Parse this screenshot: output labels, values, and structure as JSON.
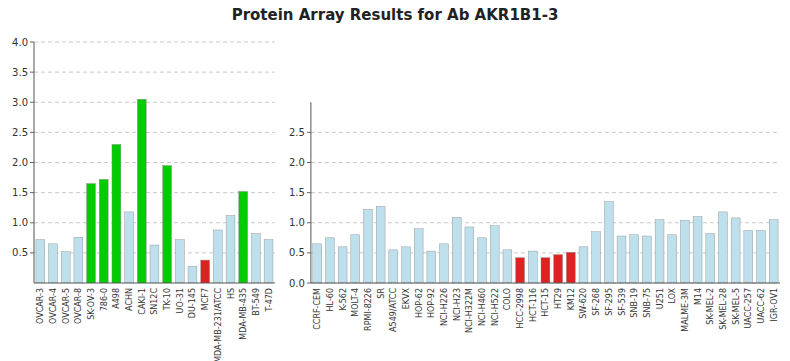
{
  "chart_data": [
    {
      "type": "bar",
      "title": "Protein Array Results for Ab AKR1B1-3",
      "categories": [
        "OVCAR-3",
        "OVCAR-4",
        "OVCAR-5",
        "OVCAR-8",
        "SK-OV-3",
        "786-0",
        "A498",
        "ACHN",
        "CAKI-1",
        "SN12C",
        "TK-10",
        "UO-31",
        "DU-145",
        "MCF7",
        "MDA-MB-231/ATCC",
        "HS",
        "MDA-MB-435",
        "BT-549",
        "T-47D"
      ],
      "values": [
        0.72,
        0.65,
        0.52,
        0.76,
        1.65,
        1.72,
        2.3,
        1.18,
        3.05,
        0.63,
        1.95,
        0.72,
        0.28,
        0.38,
        0.88,
        1.12,
        1.52,
        0.82,
        0.72
      ],
      "colors": [
        "#bde0ec",
        "#bde0ec",
        "#bde0ec",
        "#bde0ec",
        "#00cc00",
        "#00cc00",
        "#00cc00",
        "#bde0ec",
        "#00cc00",
        "#bde0ec",
        "#00cc00",
        "#bde0ec",
        "#bde0ec",
        "#dd2222",
        "#bde0ec",
        "#bde0ec",
        "#00cc00",
        "#bde0ec",
        "#bde0ec"
      ],
      "ylim": [
        0.0,
        4.0
      ],
      "yticks": [
        0.5,
        {
          "value": 1.0,
          "label": "1.0"
        },
        1.5,
        {
          "value": 2.0,
          "label": "2.0"
        },
        2.5,
        {
          "value": 3.0,
          "label": "3.0"
        },
        3.5,
        {
          "value": 4.0,
          "label": "4.0"
        }
      ],
      "grid": true
    },
    {
      "type": "bar",
      "categories": [
        "CCRF-CEM",
        "HL-60",
        "K-562",
        "MOLT-4",
        "RPMI-8226",
        "SR",
        "A549/ATCC",
        "EKVX",
        "HOP-62",
        "HOP-92",
        "NCI-H226",
        "NCI-H23",
        "NCI-H322M",
        "NCI-H460",
        "NCI-H522",
        "COLO",
        "HCC-2998",
        "HCT-116",
        "HCT-15",
        "HT29",
        "KM12",
        "SW-620",
        "SF-268",
        "SF-295",
        "SF-539",
        "SNB-19",
        "SNB-75",
        "U251",
        "LOX",
        "MALME-3M",
        "M14",
        "SK-MEL-2",
        "SK-MEL-28",
        "SK-MEL-5",
        "UACC-257",
        "UACC-62",
        "IGR-OV1"
      ],
      "values": [
        0.65,
        0.75,
        0.6,
        0.8,
        1.22,
        1.27,
        0.55,
        0.6,
        0.9,
        0.53,
        0.65,
        1.09,
        0.93,
        0.75,
        0.95,
        0.55,
        0.42,
        0.53,
        0.42,
        0.47,
        0.51,
        0.6,
        0.85,
        1.35,
        0.78,
        0.8,
        0.78,
        1.05,
        0.8,
        1.04,
        1.1,
        0.82,
        1.18,
        1.08,
        0.87,
        0.87,
        1.05
      ],
      "colors": [
        "#bde0ec",
        "#bde0ec",
        "#bde0ec",
        "#bde0ec",
        "#bde0ec",
        "#bde0ec",
        "#bde0ec",
        "#bde0ec",
        "#bde0ec",
        "#bde0ec",
        "#bde0ec",
        "#bde0ec",
        "#bde0ec",
        "#bde0ec",
        "#bde0ec",
        "#bde0ec",
        "#dd2222",
        "#bde0ec",
        "#dd2222",
        "#dd2222",
        "#dd2222",
        "#bde0ec",
        "#bde0ec",
        "#bde0ec",
        "#bde0ec",
        "#bde0ec",
        "#bde0ec",
        "#bde0ec",
        "#bde0ec",
        "#bde0ec",
        "#bde0ec",
        "#bde0ec",
        "#bde0ec",
        "#bde0ec",
        "#bde0ec",
        "#bde0ec",
        "#bde0ec"
      ],
      "ylim": [
        0.0,
        3.0
      ],
      "yticks": [
        {
          "value": 0.0,
          "label": "0.0"
        },
        0.5,
        {
          "value": 1.0,
          "label": "1.0"
        },
        1.5,
        {
          "value": 2.0,
          "label": "2.0"
        },
        2.5
      ],
      "grid": true
    }
  ]
}
